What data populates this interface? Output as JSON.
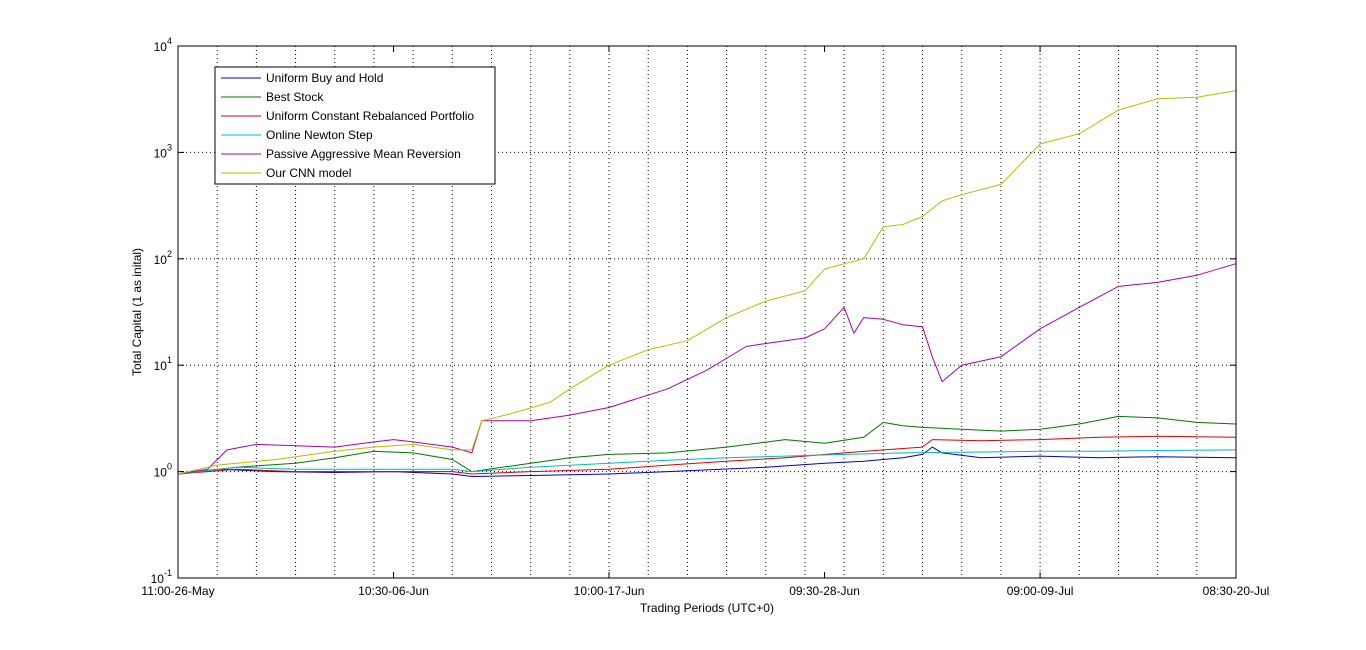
{
  "chart_data": {
    "type": "line",
    "title": "",
    "xlabel": "Trading Periods (UTC+0)",
    "ylabel": "Total Capital (1 as inital)",
    "yscale": "log",
    "ylim": [
      0.1,
      10000
    ],
    "xlim": [
      0,
      54
    ],
    "grid": true,
    "legend_position": "top-left",
    "x_ticks": [
      {
        "x": 0,
        "label": "11:00-26-May"
      },
      {
        "x": 11,
        "label": "10:30-06-Jun"
      },
      {
        "x": 22,
        "label": "10:00-17-Jun"
      },
      {
        "x": 33,
        "label": "09:30-28-Jun"
      },
      {
        "x": 44,
        "label": "09:00-09-Jul"
      },
      {
        "x": 54,
        "label": "08:30-20-Jul"
      }
    ],
    "y_ticks": [
      {
        "value": 0.1,
        "base": "10",
        "exp": "-1"
      },
      {
        "value": 1,
        "base": "10",
        "exp": "0"
      },
      {
        "value": 10,
        "base": "10",
        "exp": "1"
      },
      {
        "value": 100,
        "base": "10",
        "exp": "2"
      },
      {
        "value": 1000,
        "base": "10",
        "exp": "3"
      },
      {
        "value": 10000,
        "base": "10",
        "exp": "4"
      }
    ],
    "series": [
      {
        "name": "Uniform Buy and Hold",
        "color": "#0000cc",
        "x": [
          0,
          2,
          5,
          8,
          11,
          14,
          15,
          18,
          22,
          25,
          30,
          33,
          35,
          37,
          38,
          38.5,
          39,
          41,
          44,
          47,
          50,
          54
        ],
        "y": [
          0.95,
          1.05,
          1.0,
          0.98,
          1.0,
          0.95,
          0.9,
          0.92,
          0.95,
          1.0,
          1.1,
          1.2,
          1.25,
          1.35,
          1.45,
          1.7,
          1.5,
          1.35,
          1.4,
          1.35,
          1.38,
          1.35
        ]
      },
      {
        "name": "Best Stock",
        "color": "#007700",
        "x": [
          0,
          3,
          6,
          8,
          10,
          12,
          14,
          15,
          18,
          20,
          22,
          25,
          28,
          31,
          33,
          35,
          36,
          37,
          38,
          40,
          42,
          44,
          46,
          48,
          50,
          52,
          54
        ],
        "y": [
          0.95,
          1.1,
          1.2,
          1.35,
          1.55,
          1.5,
          1.3,
          1.0,
          1.2,
          1.35,
          1.45,
          1.5,
          1.7,
          2.0,
          1.85,
          2.1,
          2.9,
          2.7,
          2.6,
          2.5,
          2.4,
          2.5,
          2.8,
          3.3,
          3.2,
          2.9,
          2.8
        ]
      },
      {
        "name": "Uniform Constant Rebalanced Portfolio",
        "color": "#dd0000",
        "x": [
          0,
          3,
          6,
          10,
          14,
          15,
          18,
          22,
          25,
          28,
          31,
          34,
          36,
          38,
          38.5,
          41,
          44,
          47,
          50,
          54
        ],
        "y": [
          0.95,
          1.05,
          1.0,
          1.0,
          1.0,
          0.95,
          1.0,
          1.05,
          1.15,
          1.25,
          1.35,
          1.5,
          1.6,
          1.7,
          2.0,
          1.95,
          2.0,
          2.1,
          2.15,
          2.1
        ]
      },
      {
        "name": "Online Newton Step",
        "color": "#00bbbb",
        "x": [
          0,
          3,
          6,
          10,
          14,
          15,
          18,
          22,
          25,
          28,
          31,
          34,
          37,
          40,
          44,
          47,
          50,
          54
        ],
        "y": [
          0.95,
          1.1,
          1.05,
          1.05,
          1.05,
          1.0,
          1.1,
          1.2,
          1.28,
          1.35,
          1.4,
          1.45,
          1.5,
          1.52,
          1.55,
          1.55,
          1.58,
          1.6
        ]
      },
      {
        "name": "Passive Aggressive Mean Reversion",
        "color": "#aa00aa",
        "x": [
          0,
          1.5,
          2.5,
          4,
          6,
          8,
          10,
          11,
          12,
          14,
          15,
          15.5,
          18,
          20,
          22,
          25,
          27,
          29,
          30,
          32,
          33,
          34,
          34.5,
          35,
          36,
          37,
          38,
          38.5,
          39,
          40,
          42,
          44,
          46,
          48,
          50,
          52,
          54
        ],
        "y": [
          0.95,
          1.05,
          1.6,
          1.8,
          1.75,
          1.7,
          1.9,
          2.0,
          1.9,
          1.7,
          1.5,
          3.0,
          3.0,
          3.4,
          4.0,
          6.0,
          9.0,
          15.0,
          16.0,
          18.0,
          22.0,
          35.0,
          20.0,
          28.0,
          27.0,
          24.0,
          23.0,
          12.0,
          7.0,
          10.0,
          12.0,
          22.0,
          35.0,
          55.0,
          60.0,
          70.0,
          90.0
        ]
      },
      {
        "name": "Our CNN model",
        "color": "#bbbb00",
        "x": [
          0,
          2,
          5,
          8,
          10,
          12,
          14,
          15,
          15.5,
          17,
          19,
          20,
          22,
          24,
          26,
          28,
          30,
          32,
          33,
          34,
          35,
          36,
          37,
          38,
          39,
          40,
          42,
          44,
          46,
          48,
          50,
          52,
          54
        ],
        "y": [
          0.95,
          1.15,
          1.3,
          1.55,
          1.7,
          1.8,
          1.6,
          1.6,
          3.0,
          3.5,
          4.5,
          6.0,
          10.0,
          14.0,
          17.0,
          28.0,
          40.0,
          50.0,
          80.0,
          90.0,
          100.0,
          200.0,
          210.0,
          250.0,
          350.0,
          400.0,
          500.0,
          1200.0,
          1500.0,
          2500.0,
          3200.0,
          3300.0,
          3800.0
        ]
      }
    ]
  }
}
